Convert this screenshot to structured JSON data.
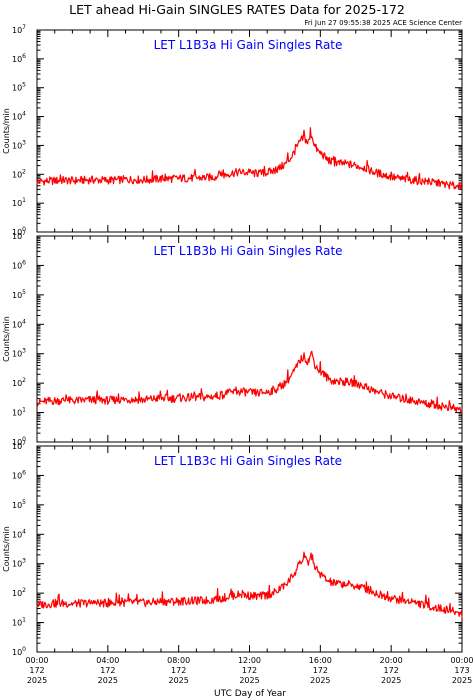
{
  "header": {
    "title": "LET ahead Hi-Gain SINGLES RATES Data for 2025-172",
    "timestamp": "Fri Jun 27 09:55:38 2025 ACE Science Center"
  },
  "chart_data": [
    {
      "type": "line",
      "title": "LET L1B3a Hi Gain Singles Rate",
      "ylabel": "Counts/min",
      "yscale": "log",
      "ylim": [
        1,
        10000000
      ],
      "xlim": [
        0,
        24
      ],
      "series": [
        {
          "x": [
            0,
            0.5,
            1,
            1.5,
            2,
            2.5,
            3,
            3.5,
            4,
            4.5,
            5,
            5.5,
            6,
            6.5,
            7,
            7.5,
            8,
            8.5,
            9,
            9.5,
            10,
            10.5,
            11,
            11.5,
            12,
            12.5,
            13,
            13.5,
            14,
            14.3,
            14.6,
            14.9,
            15.1,
            15.3,
            15.5,
            15.7,
            15.9,
            16.1,
            16.4,
            16.7,
            17,
            17.5,
            18,
            18.5,
            19,
            19.5,
            20,
            20.5,
            21,
            21.5,
            22,
            22.5,
            23,
            23.5,
            24
          ],
          "values": [
            55,
            58,
            60,
            62,
            60,
            62,
            64,
            63,
            62,
            63,
            66,
            65,
            64,
            66,
            70,
            70,
            72,
            73,
            74,
            76,
            80,
            90,
            110,
            120,
            110,
            105,
            115,
            140,
            220,
            350,
            700,
            1500,
            1800,
            1200,
            2500,
            900,
            600,
            500,
            320,
            260,
            240,
            230,
            200,
            170,
            120,
            100,
            80,
            70,
            65,
            60,
            55,
            50,
            45,
            40,
            38
          ]
        }
      ]
    },
    {
      "type": "line",
      "title": "LET L1B3b Hi Gain Singles Rate",
      "ylabel": "Counts/min",
      "yscale": "log",
      "ylim": [
        1,
        10000000
      ],
      "xlim": [
        0,
        24
      ],
      "series": [
        {
          "x": [
            0,
            0.5,
            1,
            1.5,
            2,
            2.5,
            3,
            3.5,
            4,
            4.5,
            5,
            5.5,
            6,
            6.5,
            7,
            7.5,
            8,
            8.5,
            9,
            9.5,
            10,
            10.5,
            11,
            11.5,
            12,
            12.5,
            13,
            13.5,
            14,
            14.3,
            14.6,
            14.9,
            15.1,
            15.3,
            15.5,
            15.7,
            15.9,
            16.1,
            16.4,
            16.7,
            17,
            17.5,
            18,
            18.5,
            19,
            19.5,
            20,
            20.5,
            21,
            21.5,
            22,
            22.5,
            23,
            23.5,
            24
          ],
          "values": [
            22,
            24,
            25,
            26,
            25,
            26,
            27,
            27,
            26,
            27,
            28,
            28,
            27,
            29,
            31,
            30,
            31,
            32,
            33,
            33,
            36,
            40,
            48,
            52,
            48,
            46,
            50,
            62,
            100,
            160,
            300,
            650,
            800,
            520,
            1100,
            420,
            280,
            230,
            150,
            120,
            115,
            110,
            95,
            80,
            55,
            45,
            36,
            30,
            27,
            24,
            20,
            18,
            16,
            14,
            12
          ]
        }
      ]
    },
    {
      "type": "line",
      "title": "LET L1B3c Hi Gain Singles Rate",
      "ylabel": "Counts/min",
      "yscale": "log",
      "ylim": [
        1,
        10000000
      ],
      "xlim": [
        0,
        24
      ],
      "series": [
        {
          "x": [
            0,
            0.5,
            1,
            1.5,
            2,
            2.5,
            3,
            3.5,
            4,
            4.5,
            5,
            5.5,
            6,
            6.5,
            7,
            7.5,
            8,
            8.5,
            9,
            9.5,
            10,
            10.5,
            11,
            11.5,
            12,
            12.5,
            13,
            13.5,
            14,
            14.3,
            14.6,
            14.9,
            15.1,
            15.3,
            15.5,
            15.7,
            15.9,
            16.1,
            16.4,
            16.7,
            17,
            17.5,
            18,
            18.5,
            19,
            19.5,
            20,
            20.5,
            21,
            21.5,
            22,
            22.5,
            23,
            23.5,
            24
          ],
          "values": [
            40,
            42,
            44,
            45,
            44,
            45,
            46,
            46,
            45,
            46,
            48,
            48,
            47,
            49,
            52,
            52,
            53,
            54,
            55,
            56,
            60,
            68,
            82,
            90,
            82,
            78,
            86,
            110,
            180,
            300,
            550,
            1200,
            1500,
            1000,
            2000,
            750,
            500,
            400,
            260,
            220,
            210,
            200,
            175,
            150,
            105,
            85,
            68,
            58,
            52,
            45,
            38,
            32,
            28,
            24,
            20
          ]
        }
      ]
    }
  ],
  "axes": {
    "y_ticks": [
      {
        "exp": 0,
        "base": "10",
        "power": "0"
      },
      {
        "exp": 1,
        "base": "10",
        "power": "1"
      },
      {
        "exp": 2,
        "base": "10",
        "power": "2"
      },
      {
        "exp": 3,
        "base": "10",
        "power": "3"
      },
      {
        "exp": 4,
        "base": "10",
        "power": "4"
      },
      {
        "exp": 5,
        "base": "10",
        "power": "5"
      },
      {
        "exp": 6,
        "base": "10",
        "power": "6"
      },
      {
        "exp": 7,
        "base": "10",
        "power": "7"
      }
    ],
    "x_ticks": [
      {
        "x": 0,
        "time": "00:00",
        "doy": "172",
        "year": "2025"
      },
      {
        "x": 4,
        "time": "04:00",
        "doy": "172",
        "year": "2025"
      },
      {
        "x": 8,
        "time": "08:00",
        "doy": "172",
        "year": "2025"
      },
      {
        "x": 12,
        "time": "12:00",
        "doy": "172",
        "year": "2025"
      },
      {
        "x": 16,
        "time": "16:00",
        "doy": "172",
        "year": "2025"
      },
      {
        "x": 20,
        "time": "20:00",
        "doy": "172",
        "year": "2025"
      },
      {
        "x": 24,
        "time": "00:00",
        "doy": "173",
        "year": "2025"
      }
    ],
    "xlabel": "UTC Day of Year"
  },
  "colors": {
    "series": "#ff0000",
    "panel_title": "#0000ff",
    "axis": "#000000"
  }
}
